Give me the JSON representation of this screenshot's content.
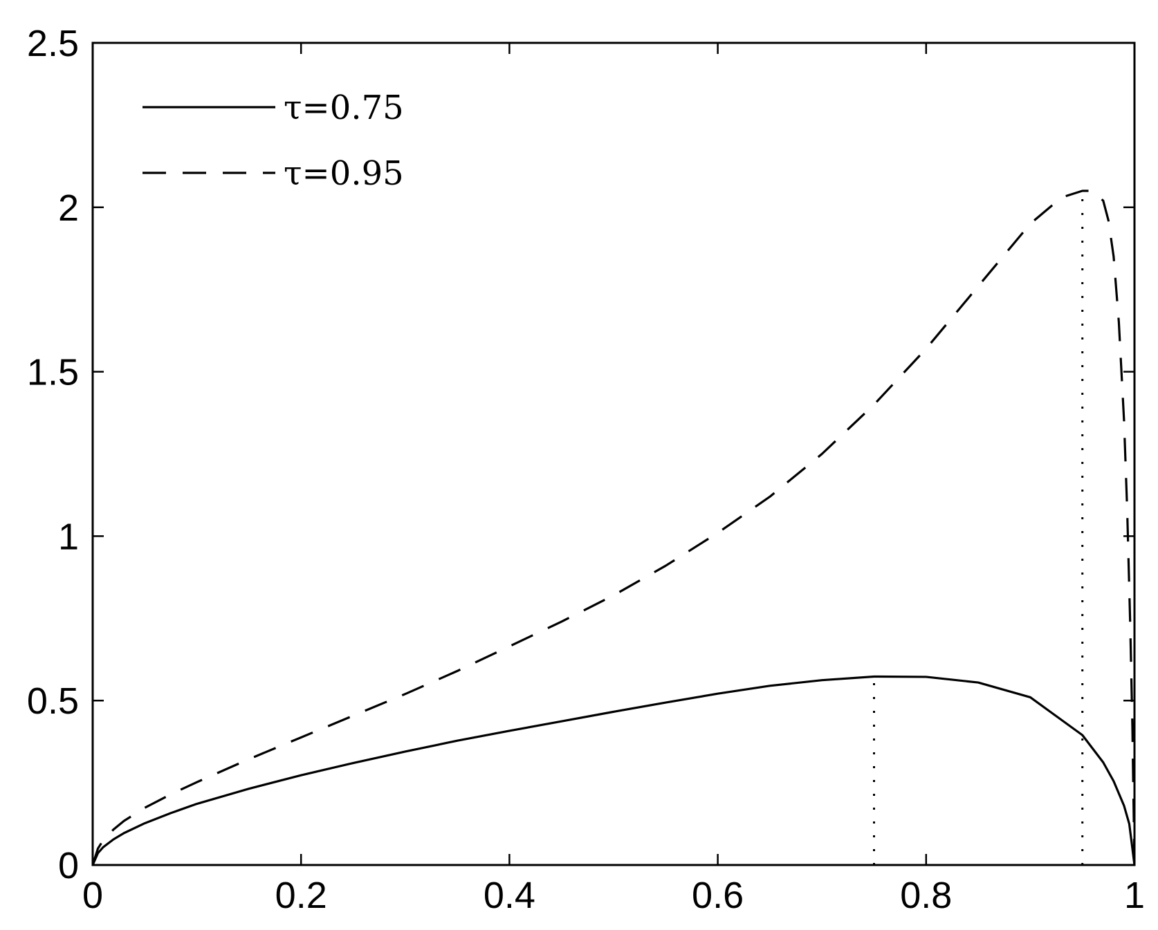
{
  "chart_data": {
    "type": "line",
    "title": "",
    "xlabel": "",
    "ylabel": "",
    "xlim": [
      0,
      1
    ],
    "ylim": [
      0,
      2.5
    ],
    "x_ticks": [
      0,
      0.2,
      0.4,
      0.6,
      0.8,
      1
    ],
    "x_tick_labels": [
      "0",
      "0.2",
      "0.4",
      "0.6",
      "0.8",
      "1"
    ],
    "y_ticks": [
      0,
      0.5,
      1,
      1.5,
      2,
      2.5
    ],
    "y_tick_labels": [
      "0",
      "0.5",
      "1",
      "1.5",
      "2",
      "2.5"
    ],
    "grid": false,
    "legend_position": "top-left",
    "series": [
      {
        "name": "τ=0.75",
        "style": "solid",
        "color": "#000000",
        "x": [
          0,
          0.005,
          0.01,
          0.02,
          0.03,
          0.05,
          0.075,
          0.1,
          0.15,
          0.2,
          0.25,
          0.3,
          0.35,
          0.4,
          0.45,
          0.5,
          0.55,
          0.6,
          0.65,
          0.7,
          0.75,
          0.8,
          0.85,
          0.9,
          0.95,
          0.97,
          0.98,
          0.99,
          0.995,
          1
        ],
        "y": [
          0,
          0.036,
          0.054,
          0.078,
          0.097,
          0.127,
          0.158,
          0.186,
          0.232,
          0.273,
          0.31,
          0.345,
          0.378,
          0.408,
          0.437,
          0.466,
          0.494,
          0.521,
          0.545,
          0.562,
          0.573,
          0.572,
          0.555,
          0.51,
          0.395,
          0.312,
          0.255,
          0.18,
          0.125,
          0
        ]
      },
      {
        "name": "τ=0.95",
        "style": "dashed",
        "color": "#000000",
        "x": [
          0,
          0.005,
          0.01,
          0.02,
          0.03,
          0.05,
          0.075,
          0.1,
          0.15,
          0.2,
          0.25,
          0.3,
          0.35,
          0.4,
          0.45,
          0.5,
          0.55,
          0.6,
          0.65,
          0.7,
          0.75,
          0.8,
          0.85,
          0.9,
          0.93,
          0.95,
          0.96,
          0.97,
          0.975,
          0.98,
          0.985,
          0.99,
          0.993,
          0.996,
          0.998,
          1
        ],
        "y": [
          0,
          0.05,
          0.075,
          0.108,
          0.134,
          0.174,
          0.215,
          0.252,
          0.322,
          0.388,
          0.454,
          0.52,
          0.59,
          0.665,
          0.74,
          0.82,
          0.91,
          1.01,
          1.12,
          1.25,
          1.4,
          1.57,
          1.76,
          1.95,
          2.03,
          2.05,
          2.05,
          2.02,
          1.96,
          1.85,
          1.65,
          1.35,
          1.08,
          0.72,
          0.42,
          0
        ]
      }
    ],
    "reference_lines": [
      {
        "x": 0.75,
        "y_top": 0.573,
        "style": "dotted"
      },
      {
        "x": 0.95,
        "y_top": 2.05,
        "style": "dotted"
      }
    ]
  }
}
